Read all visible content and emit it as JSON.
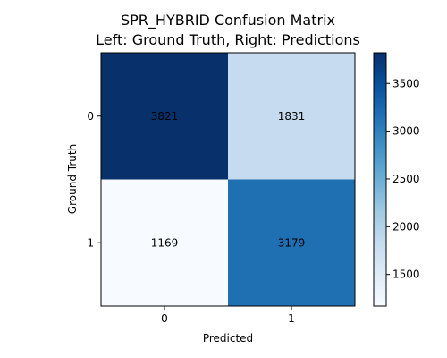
{
  "chart_data": {
    "type": "heatmap",
    "title_line1": "SPR_HYBRID Confusion Matrix",
    "title_line2": "Left: Ground Truth, Right: Predictions",
    "xlabel": "Predicted",
    "ylabel": "Ground Truth",
    "x_categories": [
      "0",
      "1"
    ],
    "y_categories": [
      "0",
      "1"
    ],
    "values": [
      [
        3821,
        1831
      ],
      [
        1169,
        3179
      ]
    ],
    "colormap": "Blues",
    "colorbar": {
      "min": 1169,
      "max": 3821,
      "ticks": [
        "1500",
        "2000",
        "2500",
        "3000",
        "3500"
      ]
    }
  }
}
